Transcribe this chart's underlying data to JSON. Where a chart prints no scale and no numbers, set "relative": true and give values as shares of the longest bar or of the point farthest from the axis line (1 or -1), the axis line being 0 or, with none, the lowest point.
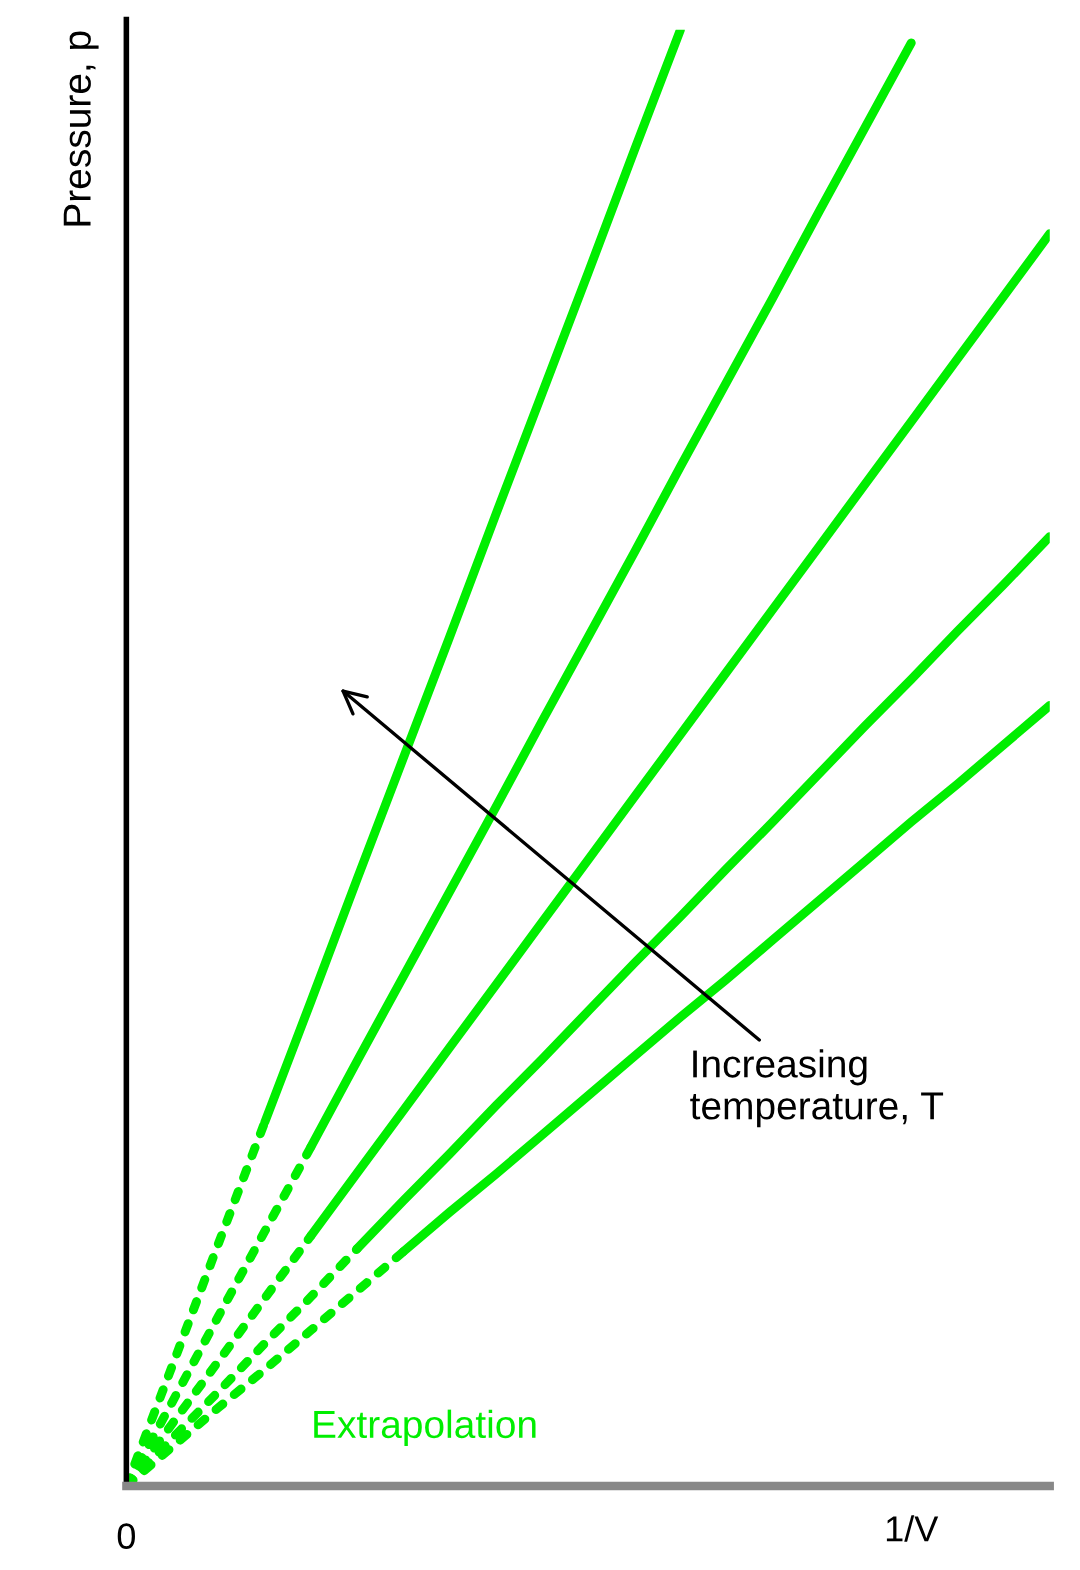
{
  "chart_data": {
    "type": "line",
    "relative": true,
    "ylabel": "Pressure, p",
    "xlabel": "1/V",
    "categories": [
      null,
      null,
      null,
      null,
      null,
      null,
      null,
      null,
      null,
      null,
      null,
      null,
      null,
      null,
      null,
      null,
      null,
      null,
      null,
      null,
      null
    ],
    "annotations": [
      "Extrapolation",
      "Increasing\ntemperature, T",
      "0"
    ],
    "series": [
      {
        "color": "#00ee00",
        "line_style": "dotted",
        "values": [
          0,
          0.083,
          0.167,
          0.25,
          null,
          null,
          null,
          null,
          null,
          null,
          null,
          null,
          null,
          null,
          null,
          null,
          null,
          null,
          null,
          null,
          null
        ]
      },
      {
        "color": "#00ee00",
        "line_style": "solid",
        "values": [
          null,
          null,
          null,
          0.25,
          0.333,
          0.417,
          0.5,
          0.583,
          0.667,
          0.75,
          0.833,
          0.917,
          1.0,
          null,
          null,
          null,
          null,
          null,
          null,
          null,
          null
        ]
      },
      {
        "color": "#00ee00",
        "line_style": "dotted",
        "values": [
          0,
          0.058,
          0.117,
          0.175,
          0.233,
          null,
          null,
          null,
          null,
          null,
          null,
          null,
          null,
          null,
          null,
          null,
          null,
          null,
          null,
          null,
          null
        ]
      },
      {
        "color": "#00ee00",
        "line_style": "solid",
        "values": [
          null,
          null,
          null,
          null,
          0.233,
          0.292,
          0.35,
          0.408,
          0.466,
          0.525,
          0.583,
          0.641,
          0.7,
          0.758,
          0.816,
          0.875,
          0.933,
          0.991,
          null,
          null,
          null
        ]
      },
      {
        "color": "#00ee00",
        "line_style": "dotted",
        "values": [
          0,
          0.043,
          0.086,
          0.129,
          0.172,
          null,
          null,
          null,
          null,
          null,
          null,
          null,
          null,
          null,
          null,
          null,
          null,
          null,
          null,
          null,
          null
        ]
      },
      {
        "color": "#00ee00",
        "line_style": "solid",
        "values": [
          null,
          null,
          null,
          null,
          0.172,
          0.215,
          0.258,
          0.301,
          0.344,
          0.387,
          0.43,
          0.473,
          0.516,
          0.559,
          0.602,
          0.645,
          0.688,
          0.731,
          0.774,
          0.817,
          0.86
        ]
      },
      {
        "color": "#00ee00",
        "line_style": "dotted",
        "values": [
          0,
          0.033,
          0.065,
          0.098,
          0.13,
          0.163,
          null,
          null,
          null,
          null,
          null,
          null,
          null,
          null,
          null,
          null,
          null,
          null,
          null,
          null,
          null
        ]
      },
      {
        "color": "#00ee00",
        "line_style": "solid",
        "values": [
          null,
          null,
          null,
          null,
          null,
          0.163,
          0.196,
          0.228,
          0.261,
          0.293,
          0.326,
          0.359,
          0.391,
          0.424,
          0.456,
          0.489,
          0.522,
          0.554,
          0.587,
          0.619,
          0.652
        ]
      },
      {
        "color": "#00ee00",
        "line_style": "dotted",
        "values": [
          0,
          0.027,
          0.054,
          0.08,
          0.107,
          0.134,
          0.161,
          null,
          null,
          null,
          null,
          null,
          null,
          null,
          null,
          null,
          null,
          null,
          null,
          null,
          null
        ]
      },
      {
        "color": "#00ee00",
        "line_style": "solid",
        "values": [
          null,
          null,
          null,
          null,
          null,
          null,
          0.161,
          0.188,
          0.214,
          0.241,
          0.268,
          0.295,
          0.322,
          0.348,
          0.375,
          0.402,
          0.429,
          0.456,
          0.482,
          0.509,
          0.536
        ]
      }
    ]
  }
}
